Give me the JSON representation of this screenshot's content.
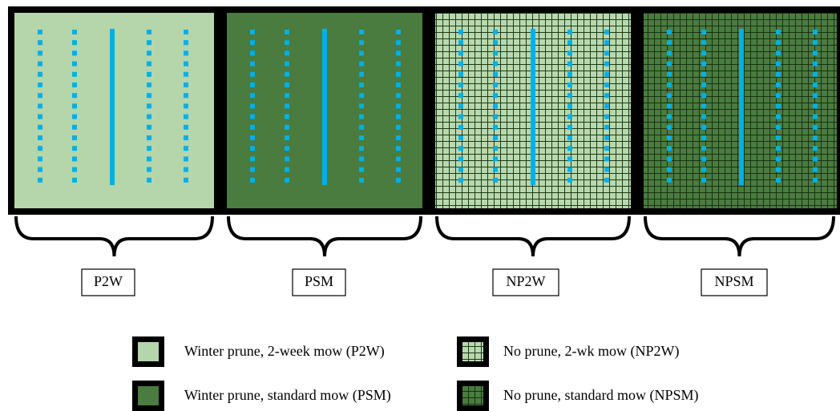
{
  "panels": [
    {
      "label": "P2W"
    },
    {
      "label": "PSM"
    },
    {
      "label": "NP2W"
    },
    {
      "label": "NPSM"
    }
  ],
  "legend": [
    {
      "label": "Winter prune, 2-week mow (P2W)"
    },
    {
      "label": "Winter prune, standard mow (PSM)"
    },
    {
      "label": "No prune, 2-wk mow (NP2W)"
    },
    {
      "label": "No prune, standard mow (NPSM)"
    }
  ]
}
